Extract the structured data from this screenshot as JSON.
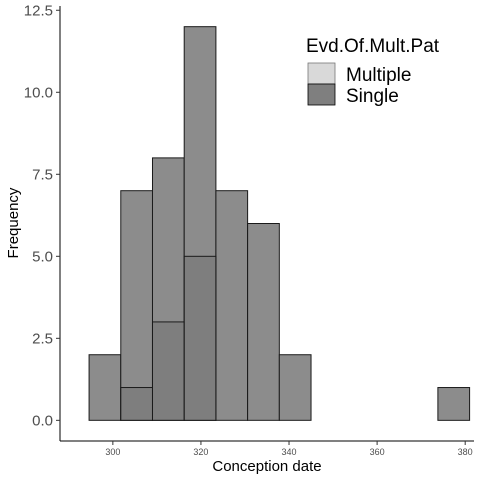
{
  "chart_data": {
    "type": "bar",
    "xlabel": "Conception date",
    "ylabel": "Frequency",
    "xlim": [
      288,
      382
    ],
    "ylim": [
      -0.63,
      12.63
    ],
    "x_ticks": [
      300,
      320,
      340,
      360,
      380
    ],
    "x_tick_labels": [
      "300",
      "320",
      "340",
      "360",
      "380"
    ],
    "y_ticks": [
      0,
      2.5,
      5,
      7.5,
      10,
      12.5
    ],
    "y_tick_labels": [
      "0.0",
      "2.5",
      "5.0",
      "7.5",
      "10.0",
      "12.5"
    ],
    "bin_edges": [
      294.6,
      301.8,
      309.0,
      316.2,
      323.4,
      330.6,
      337.8,
      345.0,
      352.2,
      359.4,
      366.6,
      373.8,
      381.0
    ],
    "series": [
      {
        "name": "Multiple",
        "color": "#8c8c8c",
        "values": [
          2,
          7,
          8,
          12,
          7,
          6,
          2,
          0,
          0,
          0,
          0,
          1
        ]
      },
      {
        "name": "Single",
        "color": "#7a7a7a",
        "values": [
          0,
          1,
          3,
          5,
          0,
          0,
          0,
          0,
          0,
          0,
          0,
          0
        ]
      }
    ],
    "legend": {
      "title": "Evd.Of.Mult.Pat",
      "position": "top-right",
      "items": [
        {
          "label": "Multiple",
          "color": "#d9d9d9"
        },
        {
          "label": "Single",
          "color": "#7f7f7f"
        }
      ]
    },
    "grid": false
  }
}
